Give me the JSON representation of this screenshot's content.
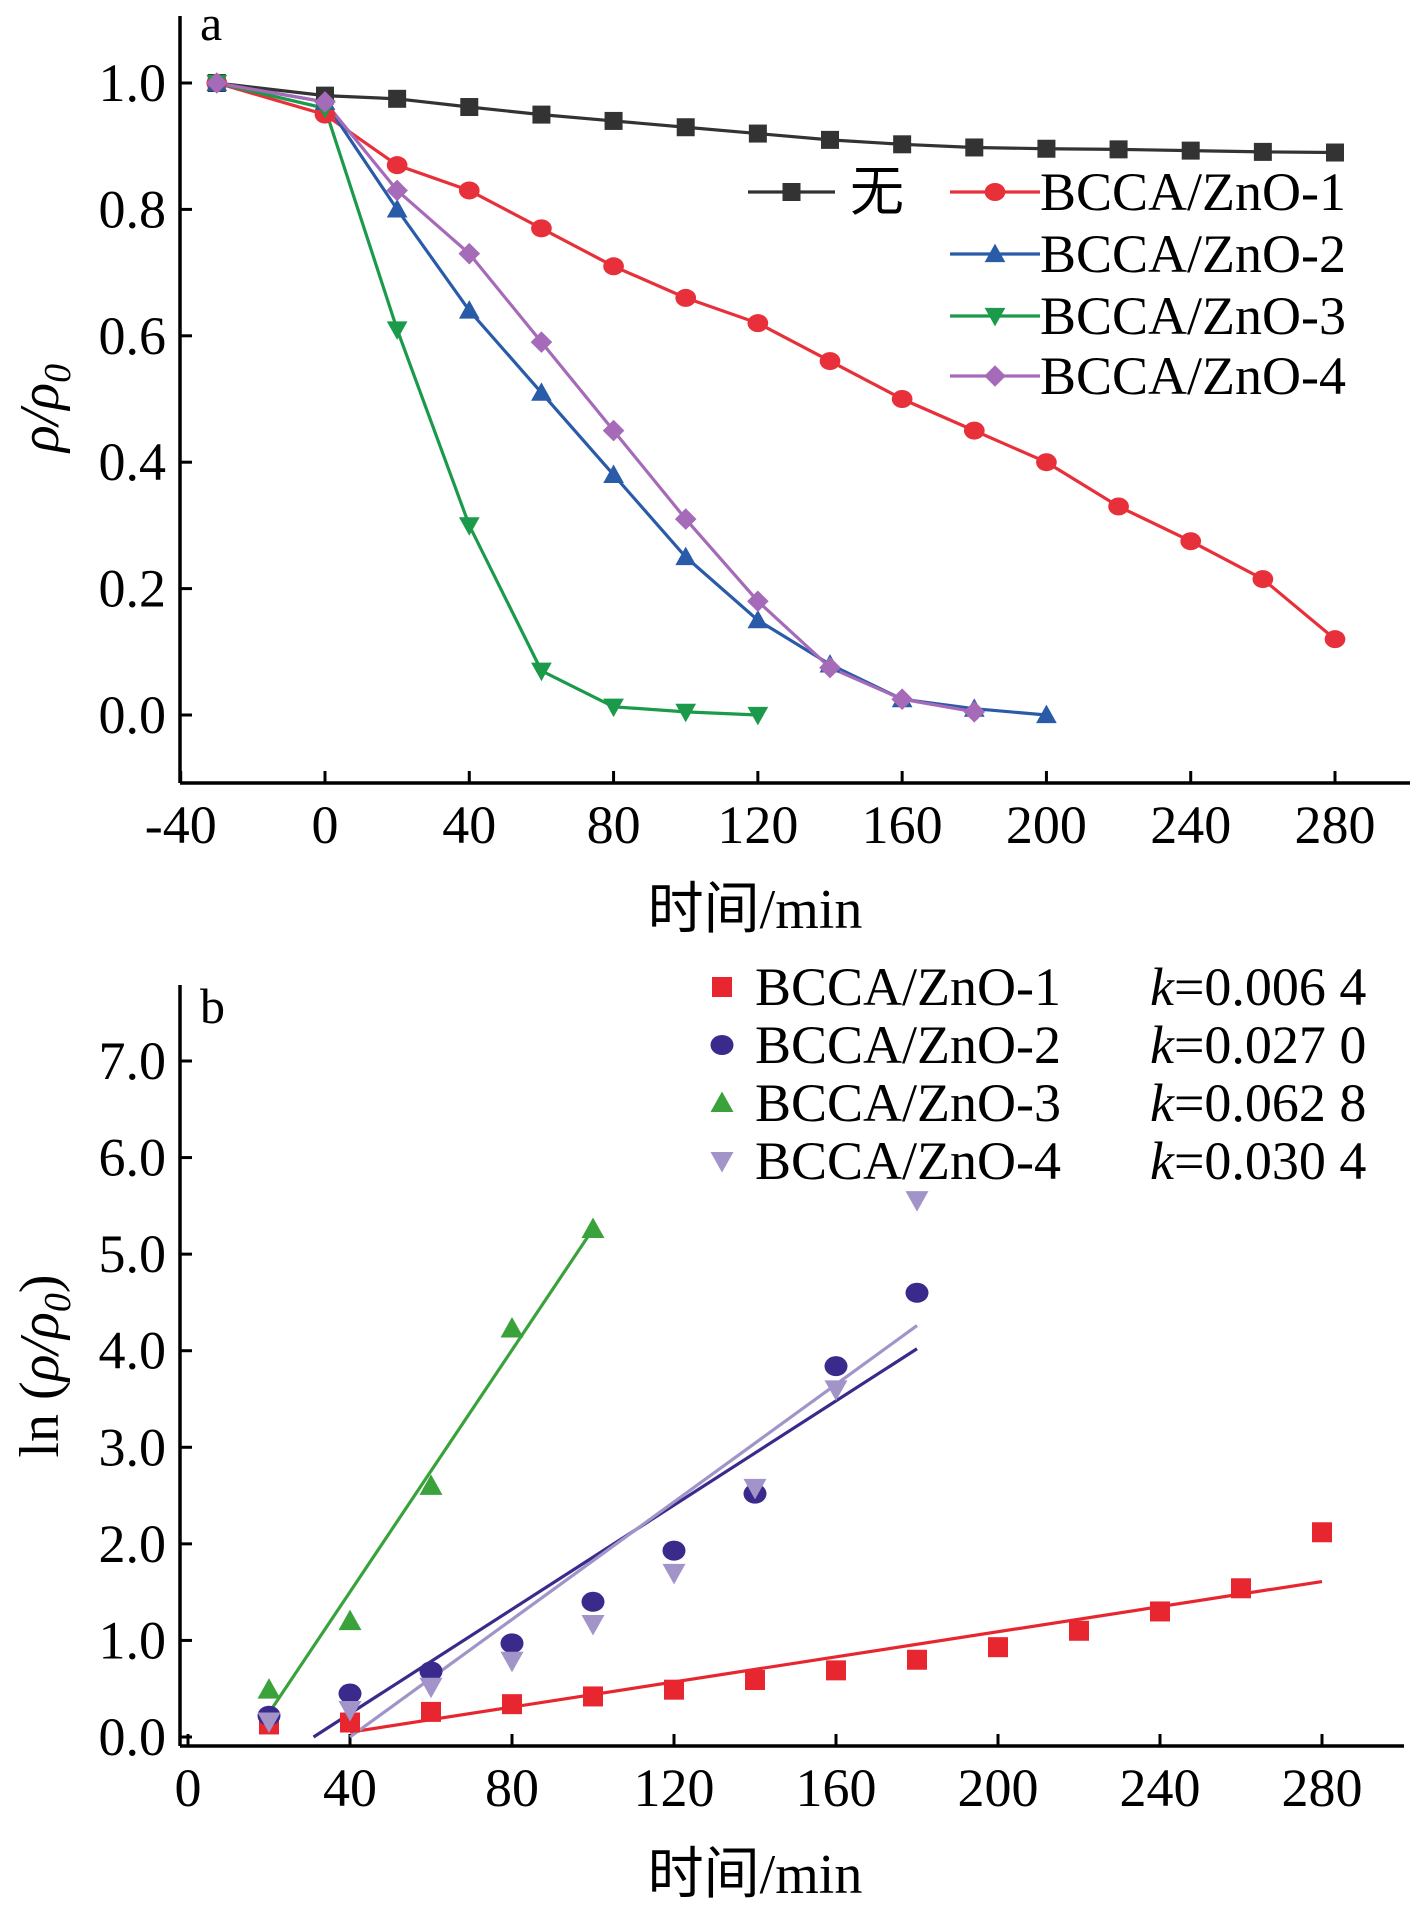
{
  "chart_data": [
    {
      "panel_label": "a",
      "type": "line",
      "xlabel": "时间/min",
      "ylabel_main": "ρ/ρ",
      "ylabel_sub": "0",
      "xlim": [
        -40,
        300
      ],
      "ylim": [
        -0.1,
        1.1
      ],
      "xticks": [
        -40,
        0,
        40,
        80,
        120,
        160,
        200,
        240,
        280
      ],
      "xtick_labels": [
        "-40",
        "0",
        "40",
        "80",
        "120",
        "160",
        "200",
        "240",
        "280"
      ],
      "yticks": [
        0.0,
        0.2,
        0.4,
        0.6,
        0.8,
        1.0
      ],
      "ytick_labels": [
        "0.0",
        "0.2",
        "0.4",
        "0.6",
        "0.8",
        "1.0"
      ],
      "legend_position": "upper-right",
      "series": [
        {
          "name": "无",
          "color": "#333333",
          "marker": "square",
          "x": [
            -30,
            0,
            20,
            40,
            60,
            80,
            100,
            120,
            140,
            160,
            180,
            200,
            220,
            240,
            260,
            280
          ],
          "y": [
            1.0,
            0.98,
            0.975,
            0.962,
            0.95,
            0.94,
            0.93,
            0.92,
            0.91,
            0.903,
            0.898,
            0.896,
            0.895,
            0.893,
            0.891,
            0.89
          ]
        },
        {
          "name": "BCCA/ZnO-1",
          "color": "#e8303a",
          "marker": "circle",
          "x": [
            -30,
            0,
            20,
            40,
            60,
            80,
            100,
            120,
            140,
            160,
            180,
            200,
            220,
            240,
            260,
            280
          ],
          "y": [
            1.0,
            0.95,
            0.87,
            0.83,
            0.77,
            0.71,
            0.66,
            0.62,
            0.56,
            0.5,
            0.45,
            0.4,
            0.33,
            0.275,
            0.215,
            0.12
          ]
        },
        {
          "name": "BCCA/ZnO-2",
          "color": "#2a5ba8",
          "marker": "triangle-up",
          "x": [
            -30,
            0,
            20,
            40,
            60,
            80,
            100,
            120,
            140,
            160,
            180,
            200
          ],
          "y": [
            1.0,
            0.97,
            0.8,
            0.64,
            0.51,
            0.38,
            0.25,
            0.15,
            0.08,
            0.025,
            0.01,
            0.0
          ]
        },
        {
          "name": "BCCA/ZnO-3",
          "color": "#1a9a4a",
          "marker": "triangle-down",
          "x": [
            -30,
            0,
            20,
            40,
            60,
            80,
            100,
            120
          ],
          "y": [
            1.0,
            0.96,
            0.61,
            0.3,
            0.07,
            0.013,
            0.005,
            0.0
          ]
        },
        {
          "name": "BCCA/ZnO-4",
          "color": "#a66bb8",
          "marker": "diamond",
          "x": [
            -30,
            0,
            20,
            40,
            60,
            80,
            100,
            120,
            140,
            160,
            180
          ],
          "y": [
            1.0,
            0.97,
            0.83,
            0.73,
            0.59,
            0.45,
            0.31,
            0.18,
            0.075,
            0.025,
            0.005
          ]
        }
      ]
    },
    {
      "panel_label": "b",
      "type": "scatter",
      "xlabel": "时间/min",
      "ylabel_prefix": "ln (",
      "ylabel_main": "ρ/ρ",
      "ylabel_sub": "0",
      "ylabel_suffix": ")",
      "xlim": [
        0,
        300
      ],
      "ylim": [
        0,
        7.8
      ],
      "xticks": [
        0,
        40,
        80,
        120,
        160,
        200,
        240,
        280
      ],
      "xtick_labels": [
        "0",
        "40",
        "80",
        "120",
        "160",
        "200",
        "240",
        "280"
      ],
      "yticks": [
        0,
        1,
        2,
        3,
        4,
        5,
        6,
        7
      ],
      "ytick_labels": [
        "0.0",
        "1.0",
        "2.0",
        "3.0",
        "4.0",
        "5.0",
        "6.0",
        "7.0"
      ],
      "legend_position": "upper-right",
      "series": [
        {
          "name": "BCCA/ZnO-1",
          "k_label": "k",
          "k_value": "=0.006 4",
          "color": "#e8262f",
          "marker": "square",
          "x": [
            20,
            40,
            60,
            80,
            100,
            120,
            140,
            160,
            180,
            200,
            220,
            240,
            260,
            280
          ],
          "y": [
            0.13,
            0.15,
            0.26,
            0.34,
            0.42,
            0.49,
            0.59,
            0.69,
            0.8,
            0.93,
            1.1,
            1.3,
            1.54,
            2.12
          ],
          "fit": {
            "x": [
              40,
              280
            ],
            "y": [
              0.05,
              1.61
            ]
          }
        },
        {
          "name": "BCCA/ZnO-2",
          "k_label": "k",
          "k_value": "=0.027 0",
          "color": "#3a2a8c",
          "marker": "circle",
          "x": [
            20,
            40,
            60,
            80,
            100,
            120,
            140,
            160,
            180
          ],
          "y": [
            0.22,
            0.45,
            0.68,
            0.97,
            1.4,
            1.93,
            2.52,
            3.84,
            4.6
          ],
          "fit": {
            "x": [
              31,
              180
            ],
            "y": [
              0.0,
              4.02
            ]
          }
        },
        {
          "name": "BCCA/ZnO-3",
          "k_label": "k",
          "k_value": "=0.062 8",
          "color": "#3aa23a",
          "marker": "triangle-up",
          "x": [
            20,
            40,
            60,
            80,
            100
          ],
          "y": [
            0.49,
            1.2,
            2.6,
            4.23,
            5.26
          ],
          "fit": {
            "x": [
              20,
              100
            ],
            "y": [
              0.25,
              5.26
            ]
          }
        },
        {
          "name": "BCCA/ZnO-4",
          "k_label": "k",
          "k_value": "=0.030 4",
          "color": "#a294c8",
          "marker": "triangle-down",
          "x": [
            20,
            40,
            60,
            80,
            100,
            120,
            140,
            160,
            180
          ],
          "y": [
            0.16,
            0.28,
            0.52,
            0.79,
            1.17,
            1.7,
            2.58,
            3.6,
            5.56
          ],
          "fit": {
            "x": [
              40,
              180
            ],
            "y": [
              0.0,
              4.26
            ]
          }
        }
      ]
    }
  ]
}
